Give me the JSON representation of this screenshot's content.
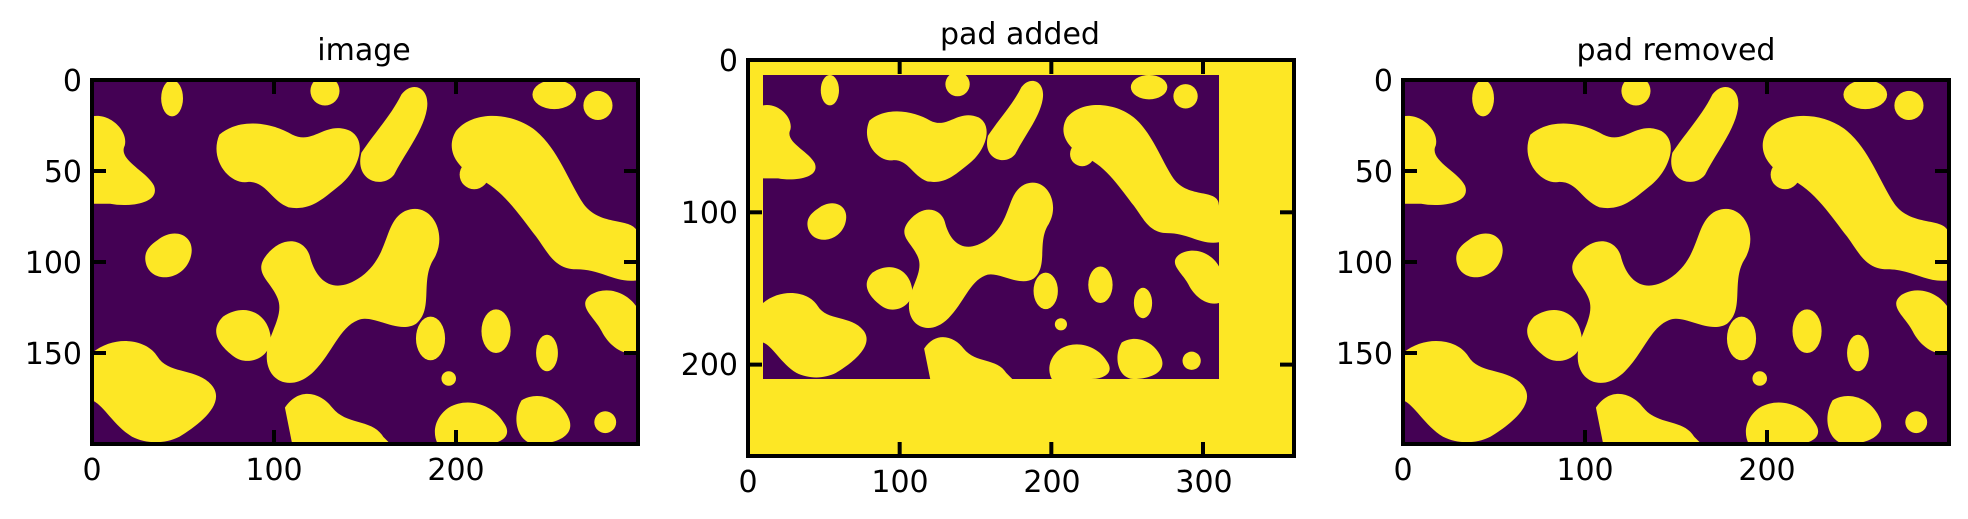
{
  "figure": {
    "colors": {
      "background": "#440154",
      "foreground": "#fde725",
      "axis": "#000000"
    }
  },
  "chart_data": [
    {
      "type": "heatmap",
      "title": "image",
      "xlim": [
        0,
        300
      ],
      "ylim": [
        200,
        0
      ],
      "xticks": [
        0,
        100,
        200
      ],
      "yticks": [
        0,
        50,
        100,
        150
      ],
      "pad": null
    },
    {
      "type": "heatmap",
      "title": "pad added",
      "xlim": [
        0,
        360
      ],
      "ylim": [
        260,
        0
      ],
      "xticks": [
        0,
        100,
        200,
        300
      ],
      "yticks": [
        0,
        100,
        200
      ],
      "pad": {
        "left": 10,
        "top": 10,
        "image_width": 300,
        "image_height": 200
      }
    },
    {
      "type": "heatmap",
      "title": "pad removed",
      "xlim": [
        0,
        300
      ],
      "ylim": [
        200,
        0
      ],
      "xticks": [
        0,
        100,
        200
      ],
      "yticks": [
        0,
        50,
        100,
        150
      ],
      "pad": null
    }
  ]
}
